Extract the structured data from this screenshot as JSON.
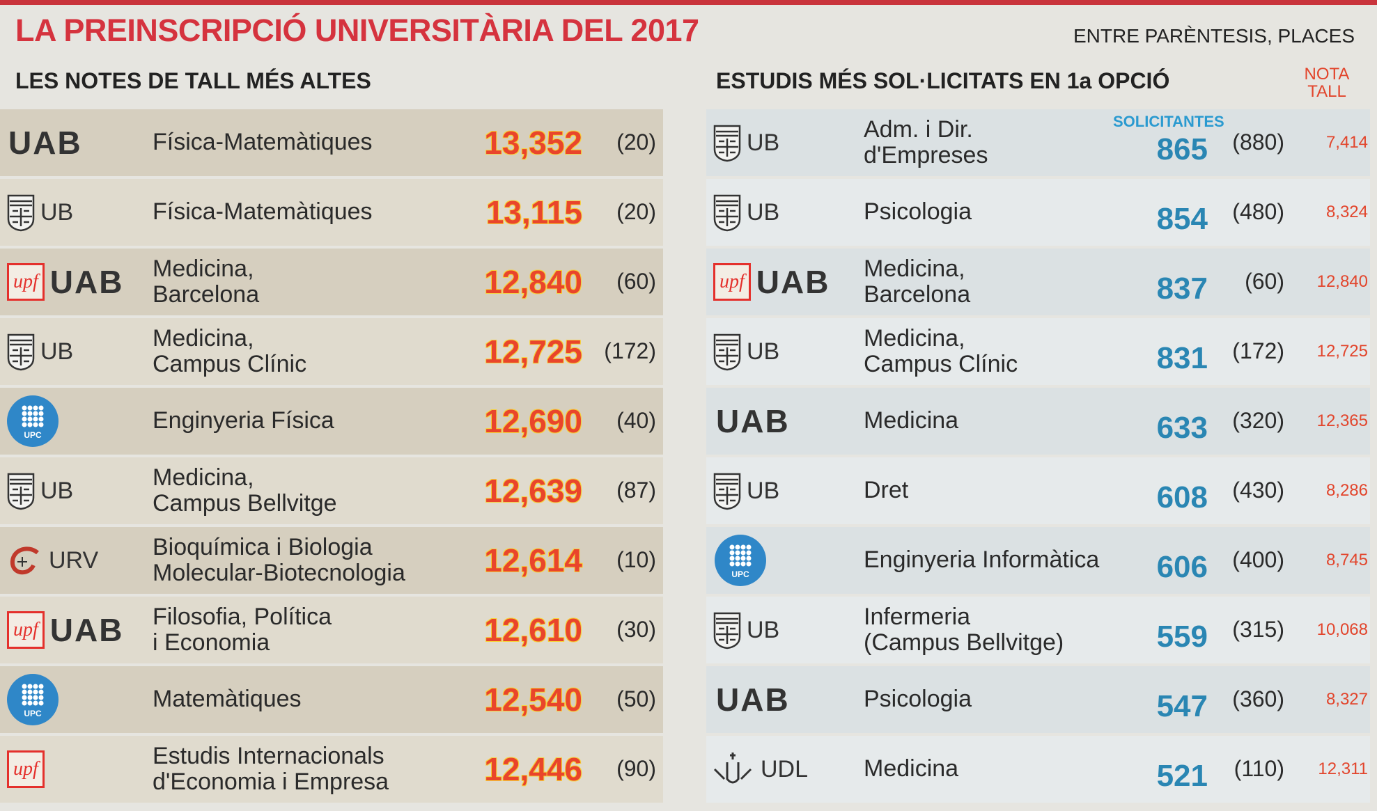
{
  "header": {
    "title": "LA PREINSCRIPCIÓ UNIVERSITÀRIA DEL 2017",
    "note": "ENTRE PARÈNTESIS, PLACES"
  },
  "left": {
    "title": "LES NOTES DE TALL MÉS ALTES",
    "rows": [
      {
        "logos": [
          "UAB"
        ],
        "study": "Física-Matemàtiques",
        "grade": "13,352",
        "places": "(20)"
      },
      {
        "logos": [
          "UB"
        ],
        "study": "Física-Matemàtiques",
        "grade": "13,115",
        "places": "(20)"
      },
      {
        "logos": [
          "upf",
          "UAB"
        ],
        "study": "Medicina,\nBarcelona",
        "grade": "12,840",
        "places": "(60)"
      },
      {
        "logos": [
          "UB"
        ],
        "study": "Medicina,\nCampus Clínic",
        "grade": "12,725",
        "places": "(172)"
      },
      {
        "logos": [
          "UPC"
        ],
        "study": "Enginyeria Física",
        "grade": "12,690",
        "places": "(40)"
      },
      {
        "logos": [
          "UB"
        ],
        "study": "Medicina,\nCampus Bellvitge",
        "grade": "12,639",
        "places": "(87)"
      },
      {
        "logos": [
          "URV"
        ],
        "study": "Bioquímica i Biologia\nMolecular-Biotecnologia",
        "grade": "12,614",
        "places": "(10)"
      },
      {
        "logos": [
          "upf",
          "UAB"
        ],
        "study": "Filosofia, Política\ni Economia",
        "grade": "12,610",
        "places": "(30)"
      },
      {
        "logos": [
          "UPC"
        ],
        "study": "Matemàtiques",
        "grade": "12,540",
        "places": "(50)"
      },
      {
        "logos": [
          "upf"
        ],
        "study": "Estudis Internacionals\nd'Economia i Empresa",
        "grade": "12,446",
        "places": "(90)"
      }
    ]
  },
  "right": {
    "title": "ESTUDIS MÉS SOL·LICITATS EN 1a OPCIÓ",
    "applicants_header": "SOLICITANTES",
    "grade_header": "NOTA\nTALL",
    "rows": [
      {
        "logos": [
          "UB"
        ],
        "study": "Adm. i Dir.\nd'Empreses",
        "applicants": "865",
        "places": "(880)",
        "grade": "7,414"
      },
      {
        "logos": [
          "UB"
        ],
        "study": "Psicologia",
        "applicants": "854",
        "places": "(480)",
        "grade": "8,324"
      },
      {
        "logos": [
          "upf",
          "UAB"
        ],
        "study": "Medicina,\nBarcelona",
        "applicants": "837",
        "places": "(60)",
        "grade": "12,840"
      },
      {
        "logos": [
          "UB"
        ],
        "study": "Medicina,\nCampus Clínic",
        "applicants": "831",
        "places": "(172)",
        "grade": "12,725"
      },
      {
        "logos": [
          "UAB"
        ],
        "study": "Medicina",
        "applicants": "633",
        "places": "(320)",
        "grade": "12,365"
      },
      {
        "logos": [
          "UB"
        ],
        "study": "Dret",
        "applicants": "608",
        "places": "(430)",
        "grade": "8,286"
      },
      {
        "logos": [
          "UPC"
        ],
        "study": "Enginyeria Informàtica",
        "applicants": "606",
        "places": "(400)",
        "grade": "8,745"
      },
      {
        "logos": [
          "UB"
        ],
        "study": "Infermeria\n(Campus Bellvitge)",
        "applicants": "559",
        "places": "(315)",
        "grade": "10,068"
      },
      {
        "logos": [
          "UAB"
        ],
        "study": "Psicologia",
        "applicants": "547",
        "places": "(360)",
        "grade": "8,327"
      },
      {
        "logos": [
          "UDL"
        ],
        "study": "Medicina",
        "applicants": "521",
        "places": "(110)",
        "grade": "12,311"
      }
    ]
  }
}
